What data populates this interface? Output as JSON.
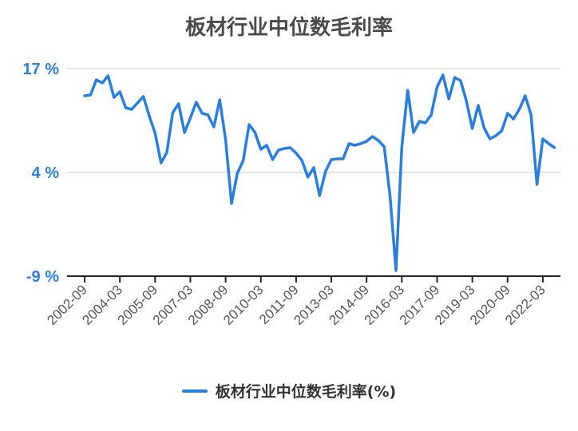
{
  "chart_data": {
    "type": "line",
    "title": "板材行业中位数毛利率",
    "y_ticks": [
      "17 %",
      "4 %",
      "-9 %"
    ],
    "ylim": [
      -9,
      17
    ],
    "x_tick_labels": [
      "2002-09",
      "2004-03",
      "2005-09",
      "2007-03",
      "2008-09",
      "2010-03",
      "2011-09",
      "2013-03",
      "2014-09",
      "2016-03",
      "2017-09",
      "2019-03",
      "2020-09",
      "2022-03"
    ],
    "x_start": "2002-09",
    "x_end": "2022-12",
    "grid": "horizontal",
    "legend_position": "bottom",
    "line_color": "#2a7fdc",
    "series": [
      {
        "name": "板材行业中位数毛利率(%)",
        "points": [
          [
            "2002-09",
            13.6
          ],
          [
            "2002-12",
            13.7
          ],
          [
            "2003-03",
            15.6
          ],
          [
            "2003-06",
            15.2
          ],
          [
            "2003-09",
            16.1
          ],
          [
            "2003-12",
            13.4
          ],
          [
            "2004-03",
            14.1
          ],
          [
            "2004-06",
            12.1
          ],
          [
            "2004-09",
            11.9
          ],
          [
            "2004-12",
            12.7
          ],
          [
            "2005-03",
            13.5
          ],
          [
            "2005-06",
            11.1
          ],
          [
            "2005-09",
            8.9
          ],
          [
            "2005-12",
            5.2
          ],
          [
            "2006-03",
            6.5
          ],
          [
            "2006-06",
            11.5
          ],
          [
            "2006-09",
            12.6
          ],
          [
            "2006-12",
            9.0
          ],
          [
            "2007-03",
            10.8
          ],
          [
            "2007-06",
            12.8
          ],
          [
            "2007-09",
            11.4
          ],
          [
            "2007-12",
            11.2
          ],
          [
            "2008-03",
            9.7
          ],
          [
            "2008-06",
            13.1
          ],
          [
            "2008-09",
            8.1
          ],
          [
            "2008-12",
            0.1
          ],
          [
            "2009-03",
            3.9
          ],
          [
            "2009-06",
            5.5
          ],
          [
            "2009-09",
            10.0
          ],
          [
            "2009-12",
            9.0
          ],
          [
            "2010-03",
            6.9
          ],
          [
            "2010-06",
            7.4
          ],
          [
            "2010-09",
            5.6
          ],
          [
            "2010-12",
            6.8
          ],
          [
            "2011-03",
            7.0
          ],
          [
            "2011-06",
            7.1
          ],
          [
            "2011-09",
            6.4
          ],
          [
            "2011-12",
            5.5
          ],
          [
            "2012-03",
            3.4
          ],
          [
            "2012-06",
            4.6
          ],
          [
            "2012-09",
            1.1
          ],
          [
            "2012-12",
            4.1
          ],
          [
            "2013-03",
            5.6
          ],
          [
            "2013-06",
            5.7
          ],
          [
            "2013-09",
            5.7
          ],
          [
            "2013-12",
            7.6
          ],
          [
            "2014-03",
            7.4
          ],
          [
            "2014-06",
            7.6
          ],
          [
            "2014-09",
            7.9
          ],
          [
            "2014-12",
            8.5
          ],
          [
            "2015-03",
            8.0
          ],
          [
            "2015-06",
            7.2
          ],
          [
            "2015-09",
            1.0
          ],
          [
            "2015-12",
            -8.3
          ],
          [
            "2016-03",
            7.2
          ],
          [
            "2016-06",
            14.3
          ],
          [
            "2016-09",
            9.0
          ],
          [
            "2016-12",
            10.4
          ],
          [
            "2017-03",
            10.2
          ],
          [
            "2017-06",
            11.2
          ],
          [
            "2017-09",
            14.7
          ],
          [
            "2017-12",
            16.2
          ],
          [
            "2018-03",
            13.2
          ],
          [
            "2018-06",
            15.9
          ],
          [
            "2018-09",
            15.5
          ],
          [
            "2018-12",
            12.9
          ],
          [
            "2019-03",
            9.5
          ],
          [
            "2019-06",
            12.4
          ],
          [
            "2019-09",
            9.6
          ],
          [
            "2019-12",
            8.2
          ],
          [
            "2020-03",
            8.6
          ],
          [
            "2020-06",
            9.2
          ],
          [
            "2020-09",
            11.4
          ],
          [
            "2020-12",
            10.7
          ],
          [
            "2021-03",
            11.9
          ],
          [
            "2021-06",
            13.6
          ],
          [
            "2021-09",
            11.2
          ],
          [
            "2021-12",
            2.5
          ],
          [
            "2022-03",
            8.2
          ],
          [
            "2022-06",
            7.6
          ],
          [
            "2022-09",
            7.1
          ]
        ]
      }
    ]
  }
}
